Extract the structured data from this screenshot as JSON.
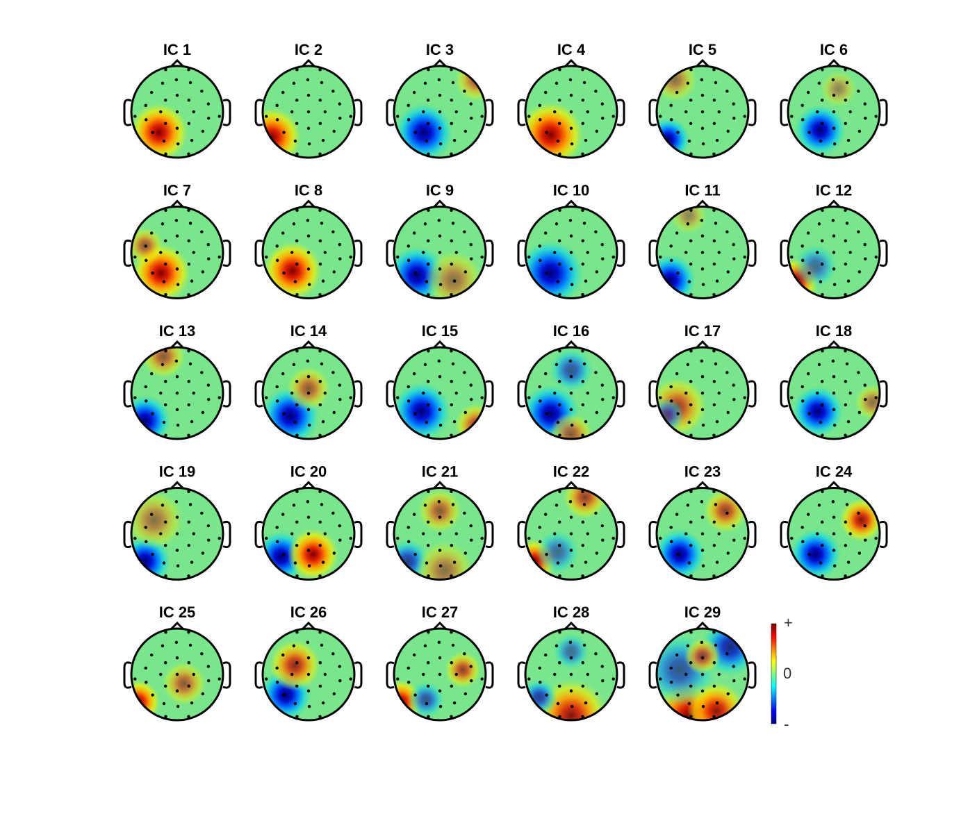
{
  "panels": [
    {
      "title": "IC 1"
    },
    {
      "title": "IC 2"
    },
    {
      "title": "IC 3"
    },
    {
      "title": "IC 4"
    },
    {
      "title": "IC 5"
    },
    {
      "title": "IC 6"
    },
    {
      "title": "IC 7"
    },
    {
      "title": "IC 8"
    },
    {
      "title": "IC 9"
    },
    {
      "title": "IC 10"
    },
    {
      "title": "IC 11"
    },
    {
      "title": "IC 12"
    },
    {
      "title": "IC 13"
    },
    {
      "title": "IC 14"
    },
    {
      "title": "IC 15"
    },
    {
      "title": "IC 16"
    },
    {
      "title": "IC 17"
    },
    {
      "title": "IC 18"
    },
    {
      "title": "IC 19"
    },
    {
      "title": "IC 20"
    },
    {
      "title": "IC 21"
    },
    {
      "title": "IC 22"
    },
    {
      "title": "IC 23"
    },
    {
      "title": "IC 24"
    },
    {
      "title": "IC 25"
    },
    {
      "title": "IC 26"
    },
    {
      "title": "IC 27"
    },
    {
      "title": "IC 28"
    },
    {
      "title": "IC 29"
    }
  ],
  "colorbar": {
    "labels": [
      "+",
      "0",
      "-"
    ]
  }
}
